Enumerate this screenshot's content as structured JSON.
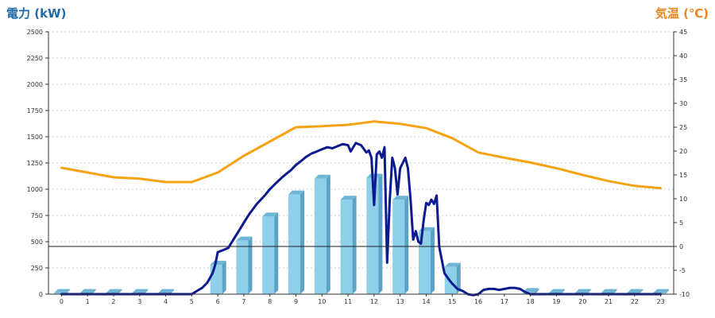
{
  "chart_data": {
    "type": "bar",
    "left_axis_title": "電力 (kW)",
    "right_axis_title": "気温 (℃)",
    "categories": [
      "0",
      "1",
      "2",
      "3",
      "4",
      "5",
      "6",
      "7",
      "8",
      "9",
      "10",
      "11",
      "12",
      "13",
      "14",
      "15",
      "16",
      "17",
      "18",
      "19",
      "20",
      "21",
      "22",
      "23"
    ],
    "y_left": {
      "min": 0,
      "max": 2500,
      "ticks": [
        "0",
        "250",
        "500",
        "750",
        "1000",
        "1250",
        "1500",
        "1750",
        "2000",
        "2250",
        "2500"
      ]
    },
    "y_right": {
      "min": -10,
      "max": 45,
      "ticks": [
        "-10",
        "-5",
        "0",
        "5",
        "10",
        "15",
        "20",
        "25",
        "30",
        "35",
        "40",
        "45"
      ]
    },
    "grid": true,
    "series": [
      {
        "kind": "bar",
        "axis": "left",
        "values": [
          10,
          10,
          10,
          10,
          10,
          0,
          280,
          510,
          740,
          950,
          1100,
          900,
          1110,
          900,
          600,
          260,
          0,
          0,
          20,
          10,
          10,
          10,
          10,
          10
        ]
      },
      {
        "kind": "line",
        "axis": "left",
        "x": [
          0,
          1,
          2,
          3,
          4,
          5,
          5.2,
          5.4,
          5.6,
          5.8,
          5.9,
          6,
          6.2,
          6.4,
          6.6,
          6.8,
          7,
          7.2,
          7.5,
          7.8,
          8,
          8.2,
          8.5,
          8.8,
          9,
          9.2,
          9.4,
          9.6,
          9.8,
          10,
          10.2,
          10.4,
          10.6,
          10.8,
          11,
          11.1,
          11.3,
          11.5,
          11.7,
          11.8,
          11.9,
          12,
          12.1,
          12.2,
          12.3,
          12.4,
          12.5,
          12.6,
          12.7,
          12.8,
          12.9,
          13,
          13.1,
          13.2,
          13.3,
          13.4,
          13.5,
          13.6,
          13.7,
          13.8,
          13.9,
          14,
          14.1,
          14.2,
          14.3,
          14.4,
          14.5,
          14.7,
          14.9,
          15,
          15.2,
          15.4,
          15.6,
          15.8,
          16,
          16.2,
          16.4,
          16.6,
          16.8,
          17,
          17.2,
          17.4,
          17.6,
          17.8,
          18,
          19,
          20,
          21,
          22,
          23
        ],
        "y": [
          0,
          0,
          0,
          0,
          0,
          0,
          30,
          60,
          110,
          200,
          280,
          400,
          420,
          440,
          520,
          600,
          680,
          760,
          860,
          940,
          1000,
          1050,
          1120,
          1180,
          1230,
          1270,
          1310,
          1340,
          1360,
          1380,
          1400,
          1390,
          1410,
          1430,
          1420,
          1360,
          1440,
          1420,
          1350,
          1370,
          1300,
          850,
          1330,
          1360,
          1300,
          1400,
          300,
          900,
          1300,
          1200,
          950,
          1200,
          1250,
          1300,
          1200,
          900,
          520,
          600,
          500,
          480,
          700,
          870,
          850,
          900,
          860,
          940,
          450,
          200,
          130,
          100,
          50,
          30,
          0,
          -10,
          0,
          40,
          50,
          50,
          40,
          50,
          60,
          60,
          50,
          20,
          0,
          0,
          0,
          0,
          0,
          0
        ]
      },
      {
        "kind": "line",
        "axis": "right",
        "x": [
          0,
          1,
          2,
          3,
          4,
          5,
          6,
          7,
          8,
          9,
          10,
          11,
          12,
          13,
          14,
          15,
          16,
          17,
          18,
          19,
          20,
          21,
          22,
          23
        ],
        "y": [
          16.5,
          15.5,
          14.5,
          14.2,
          13.5,
          13.5,
          15.5,
          19,
          22,
          25,
          25.2,
          25.5,
          26.2,
          25.7,
          24.8,
          22.7,
          19.7,
          18.6,
          17.6,
          16.4,
          15,
          13.7,
          12.7,
          12.2
        ]
      }
    ]
  },
  "colors": {
    "bar_face": "#8ecfea",
    "bar_side": "#5ba3c4",
    "bar_top": "#6fb6d6",
    "power_line": "#0d1a8f",
    "temp_line": "#f5a313",
    "left_title": "#1f6aa8",
    "right_title": "#f0841e",
    "grid": "#bdbdbd"
  }
}
